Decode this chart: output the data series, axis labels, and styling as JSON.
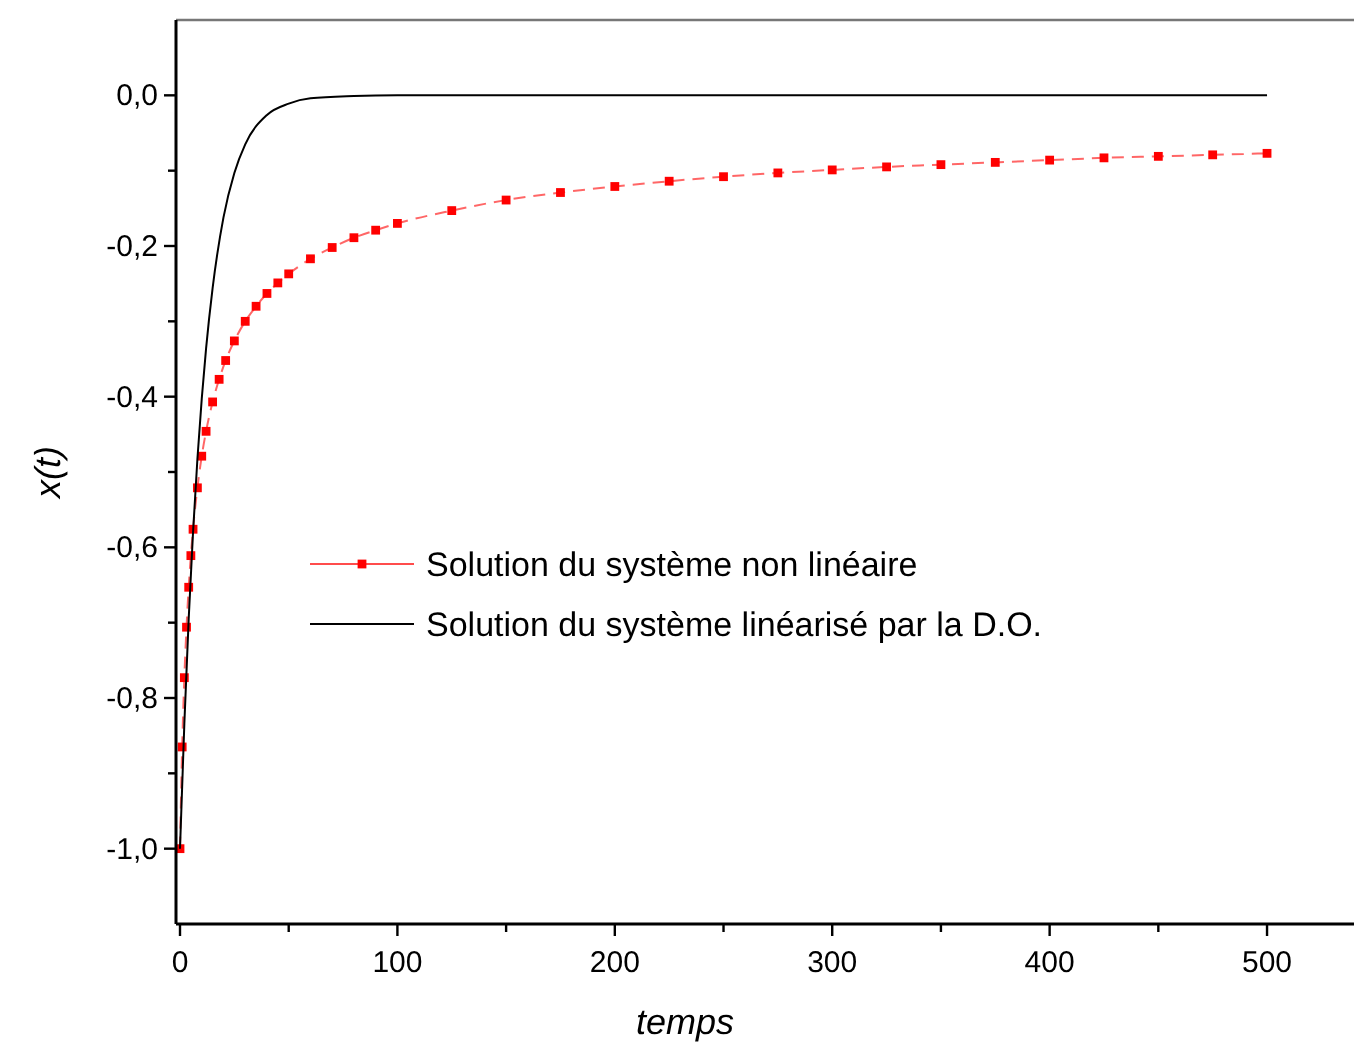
{
  "chart_data": {
    "type": "line",
    "xlabel": "temps",
    "ylabel": "x(t)",
    "xlim": [
      0,
      540
    ],
    "ylim": [
      -1.1,
      0.1
    ],
    "xticks": [
      0,
      {
        "value": 50,
        "label": null
      },
      100,
      {
        "value": 150,
        "label": null
      },
      200,
      {
        "value": 250,
        "label": null
      },
      300,
      {
        "value": 350,
        "label": null
      },
      400,
      {
        "value": 450,
        "label": null
      },
      500
    ],
    "yticks": [
      {
        "value": -1,
        "label": "-1,0"
      },
      {
        "value": -0.9,
        "label": null
      },
      {
        "value": -0.8,
        "label": "-0,8"
      },
      {
        "value": -0.7,
        "label": null
      },
      {
        "value": -0.6,
        "label": "-0,6"
      },
      {
        "value": -0.5,
        "label": null
      },
      {
        "value": -0.4,
        "label": "-0,4"
      },
      {
        "value": -0.3,
        "label": null
      },
      {
        "value": -0.2,
        "label": "-0,2"
      },
      {
        "value": -0.1,
        "label": null
      },
      {
        "value": 0,
        "label": "0,0"
      }
    ],
    "grid": false,
    "legend": "bottom left",
    "series": [
      {
        "name": "Solution du système non linéaire",
        "color": "#ff0000",
        "marker": "square",
        "line_style": "dashed",
        "x": [
          0,
          1,
          2,
          3,
          4,
          5,
          6,
          8,
          10,
          12,
          15,
          18,
          21,
          25,
          30,
          35,
          40,
          45,
          50,
          60,
          70,
          80,
          90,
          100,
          125,
          150,
          175,
          200,
          225,
          250,
          275,
          300,
          325,
          350,
          375,
          400,
          425,
          450,
          475,
          500
        ],
        "values": [
          -1,
          -0.865,
          -0.773,
          -0.706,
          -0.653,
          -0.611,
          -0.576,
          -0.521,
          -0.479,
          -0.446,
          -0.407,
          -0.377,
          -0.352,
          -0.326,
          -0.3,
          -0.28,
          -0.263,
          -0.249,
          -0.237,
          -0.217,
          -0.202,
          -0.189,
          -0.179,
          -0.17,
          -0.153,
          -0.139,
          -0.129,
          -0.121,
          -0.114,
          -0.108,
          -0.103,
          -0.099,
          -0.095,
          -0.092,
          -0.089,
          -0.086,
          -0.083,
          -0.081,
          -0.079,
          -0.077
        ]
      },
      {
        "name": "Solution du système linéarisé par la D.O.",
        "color": "#000000",
        "marker": "none",
        "line_style": "solid",
        "x": [
          0,
          2,
          4,
          6,
          8,
          10,
          12,
          15,
          20,
          25,
          30,
          40,
          50,
          60,
          80,
          100,
          200,
          300,
          400,
          500
        ],
        "values": [
          -1,
          -0.834,
          -0.695,
          -0.58,
          -0.483,
          -0.403,
          -0.336,
          -0.256,
          -0.162,
          -0.103,
          -0.065,
          -0.026,
          -0.011,
          -0.004,
          -0.001,
          0,
          0,
          0,
          0,
          0
        ]
      }
    ]
  }
}
